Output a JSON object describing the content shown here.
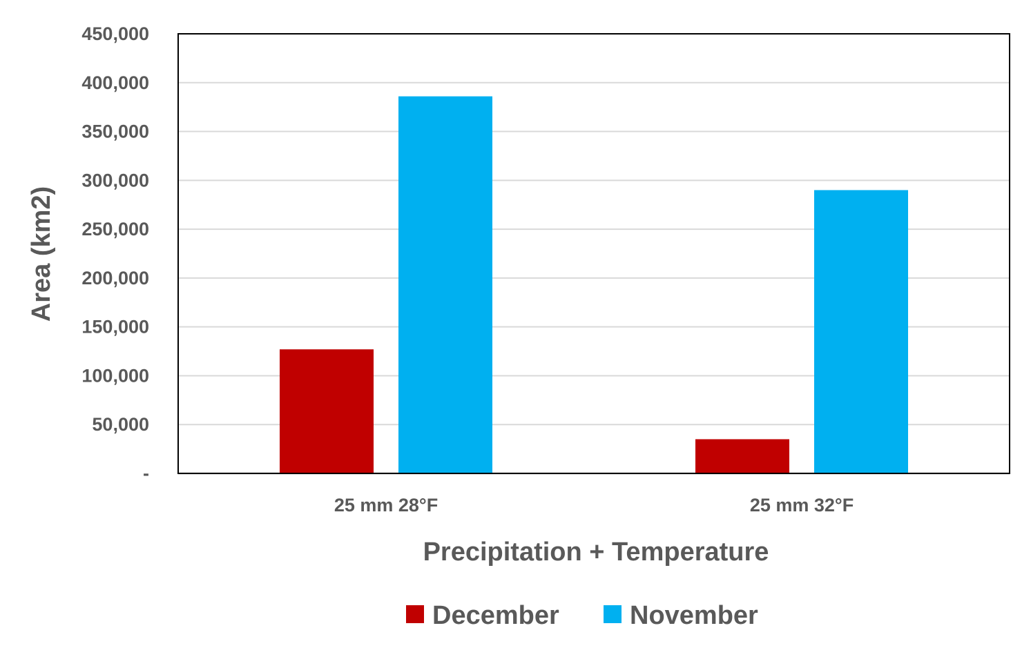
{
  "chart_data": {
    "type": "bar",
    "title": "",
    "xlabel": "Precipitation + Temperature",
    "ylabel": "Area (km2)",
    "categories": [
      "25 mm 28°F",
      "25 mm 32°F"
    ],
    "series": [
      {
        "name": "December",
        "color": "#c00000",
        "values": [
          127000,
          35000
        ]
      },
      {
        "name": "November",
        "color": "#00b0f0",
        "values": [
          386000,
          290000
        ]
      }
    ],
    "ylim": [
      0,
      450000
    ],
    "yticks": [
      0,
      50000,
      100000,
      150000,
      200000,
      250000,
      300000,
      350000,
      400000,
      450000
    ],
    "ytick_labels": [
      "-",
      "50,000",
      "100,000",
      "150,000",
      "200,000",
      "250,000",
      "300,000",
      "350,000",
      "400,000",
      "450,000"
    ],
    "grid": true,
    "legend_position": "bottom"
  }
}
